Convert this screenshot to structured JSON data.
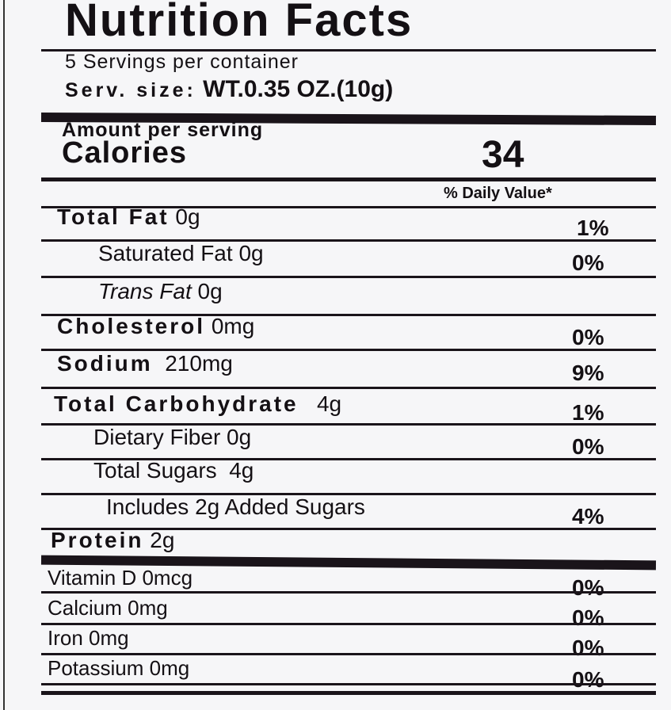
{
  "title": "Nutrition Facts",
  "servings": "5 Servings per container",
  "serving_size_label": "Serv. size:",
  "serving_size_value": "WT.0.35 OZ.(10g)",
  "amount_per_serving": "Amount per serving",
  "calories_label": "Calories",
  "calories_value": "34",
  "daily_value_header": "% Daily Value*",
  "nutrients": [
    {
      "label": "Total Fat",
      "amount": "0g",
      "dv": "1%"
    },
    {
      "label": "Saturated Fat",
      "amount": "0g",
      "dv": "0%"
    },
    {
      "label": "Trans Fat",
      "amount": "0g",
      "dv": ""
    },
    {
      "label": "Cholesterol",
      "amount": "0mg",
      "dv": "0%"
    },
    {
      "label": "Sodium",
      "amount": "210mg",
      "dv": "9%"
    },
    {
      "label": "Total Carbohydrate",
      "amount": "4g",
      "dv": "1%"
    },
    {
      "label": "Dietary Fiber",
      "amount": "0g",
      "dv": "0%"
    },
    {
      "label": "Total Sugars",
      "amount": "4g",
      "dv": ""
    },
    {
      "label": "Includes 2g Added Sugars",
      "amount": "",
      "dv": "4%"
    },
    {
      "label": "Protein",
      "amount": "2g",
      "dv": ""
    }
  ],
  "vitamins": [
    {
      "label": "Vitamin D",
      "amount": "0mcg",
      "dv": "0%"
    },
    {
      "label": "Calcium",
      "amount": "0mg",
      "dv": "0%"
    },
    {
      "label": "Iron",
      "amount": "0mg",
      "dv": "0%"
    },
    {
      "label": "Potassium",
      "amount": "0mg",
      "dv": "0%"
    }
  ]
}
